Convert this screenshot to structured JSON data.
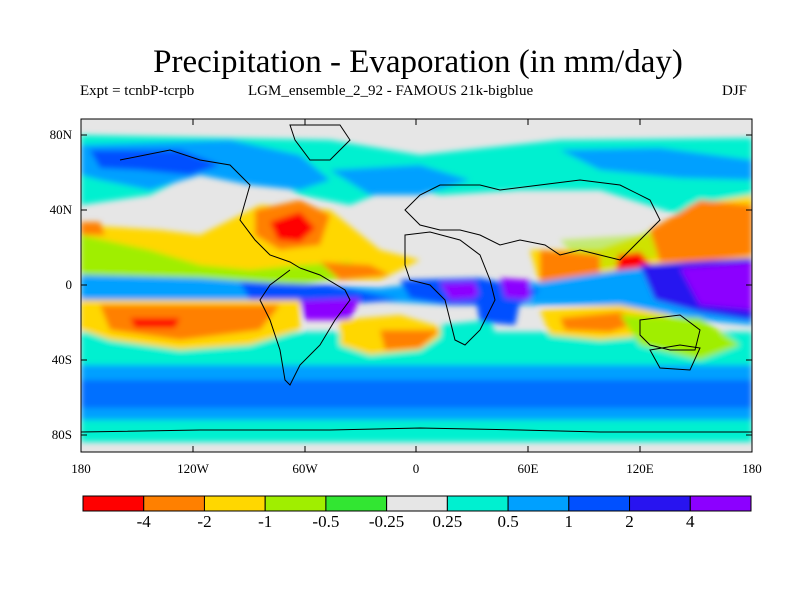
{
  "header": {
    "title": "Precipitation - Evaporation (in mm/day)",
    "expt": "Expt = tcnbP-tcrpb",
    "model": "LGM_ensemble_2_92 - FAMOUS 21k-bigblue",
    "season": "DJF"
  },
  "axes": {
    "lat_labels": [
      "80N",
      "40N",
      "0",
      "40S",
      "80S"
    ],
    "lon_labels": [
      "180",
      "120W",
      "60W",
      "0",
      "60E",
      "120E",
      "180"
    ]
  },
  "colorbar": {
    "colors": [
      "#ff0000",
      "#ff8000",
      "#ffd700",
      "#a0ee00",
      "#32e632",
      "#e6e6e6",
      "#00f0d0",
      "#00a0ff",
      "#0050ff",
      "#2814f0",
      "#8c00ff"
    ],
    "labels": [
      "-4",
      "-2",
      "-1",
      "-0.5",
      "-0.25",
      "0.25",
      "0.5",
      "1",
      "2",
      "4"
    ]
  },
  "chart_data": {
    "type": "contour_map",
    "variable": "Precipitation - Evaporation",
    "units": "mm/day",
    "season": "DJF",
    "levels": [
      -4,
      -2,
      -1,
      -0.5,
      -0.25,
      0.25,
      0.5,
      1,
      2,
      4
    ],
    "lon_range": [
      -180,
      180
    ],
    "lat_range": [
      -90,
      90
    ]
  }
}
